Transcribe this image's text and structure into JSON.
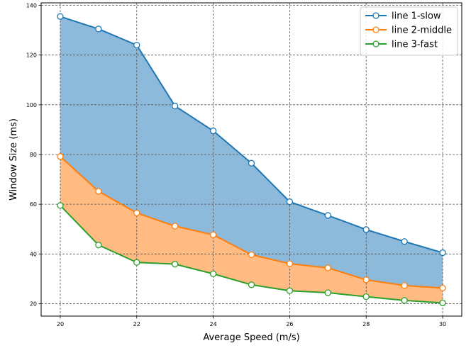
{
  "chart_data": {
    "type": "area",
    "xlabel": "Average Speed (m/s)",
    "ylabel": "Window Size (ms)",
    "x": [
      20,
      21,
      22,
      23,
      24,
      25,
      26,
      27,
      28,
      29,
      30
    ],
    "xlim": [
      19.5,
      30.5
    ],
    "ylim": [
      15,
      141
    ],
    "xticks": [
      20,
      22,
      24,
      26,
      28,
      30
    ],
    "yticks": [
      20,
      40,
      60,
      80,
      100,
      120,
      140
    ],
    "grid": true,
    "legend_position": "top-right",
    "series": [
      {
        "name": "line 1-slow",
        "color": "#1f77b4",
        "fill": "#8db9da",
        "values": [
          135.5,
          130.5,
          124.0,
          99.5,
          89.5,
          76.5,
          61.0,
          55.5,
          49.8,
          45.0,
          40.5
        ]
      },
      {
        "name": "line 2-middle",
        "color": "#ff7f0e",
        "fill": "#ffbb82",
        "values": [
          79.2,
          65.2,
          56.5,
          51.2,
          47.7,
          39.7,
          36.1,
          34.4,
          29.6,
          27.3,
          26.3
        ]
      },
      {
        "name": "line 3-fast",
        "color": "#2ca02c",
        "fill": "#ffffff",
        "values": [
          59.5,
          43.6,
          36.6,
          35.9,
          32.0,
          27.6,
          25.2,
          24.4,
          22.8,
          21.3,
          20.3
        ]
      }
    ]
  }
}
